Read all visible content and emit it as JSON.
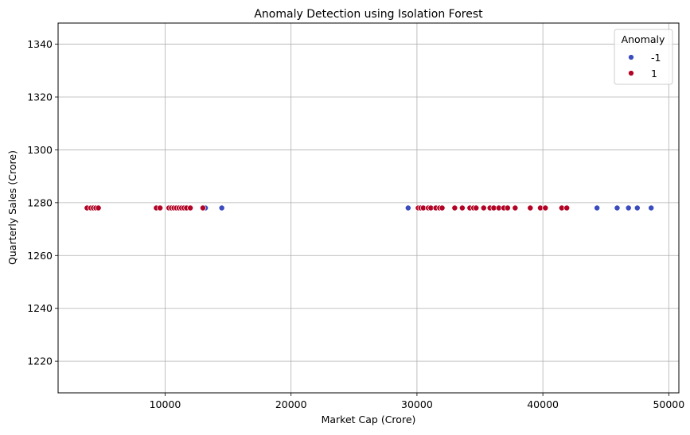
{
  "chart_data": {
    "type": "scatter",
    "title": "Anomaly Detection using Isolation Forest",
    "xlabel": "Market Cap (Crore)",
    "ylabel": "Quarterly Sales (Crore)",
    "xlim": [
      1500,
      50800
    ],
    "ylim": [
      1208,
      1348
    ],
    "xticks": [
      10000,
      20000,
      30000,
      40000,
      50000
    ],
    "yticks": [
      1220,
      1240,
      1260,
      1280,
      1300,
      1320,
      1340
    ],
    "grid": true,
    "legend": {
      "title": "Anomaly",
      "placement": "top-right",
      "entries": [
        {
          "label": "-1",
          "color": "#3b4cc0"
        },
        {
          "label": "1",
          "color": "#b40426"
        }
      ]
    },
    "series": [
      {
        "name": "-1",
        "color": "#3b4cc0",
        "x": [
          13200,
          14500,
          29300,
          44300,
          45900,
          46800,
          47500,
          48600
        ],
        "y": [
          1278,
          1278,
          1278,
          1278,
          1278,
          1278,
          1278,
          1278
        ]
      },
      {
        "name": "1",
        "color": "#b40426",
        "x": [
          3800,
          4100,
          4300,
          4500,
          4700,
          9300,
          9600,
          10300,
          10500,
          10700,
          10900,
          11100,
          11300,
          11500,
          11700,
          12000,
          13000,
          30100,
          30300,
          30500,
          30900,
          31100,
          31500,
          31800,
          32000,
          33000,
          33600,
          34200,
          34500,
          34700,
          35300,
          35800,
          36100,
          36500,
          36900,
          37200,
          37800,
          39000,
          39800,
          40200,
          41500,
          41900
        ],
        "y": [
          1278,
          1278,
          1278,
          1278,
          1278,
          1278,
          1278,
          1278,
          1278,
          1278,
          1278,
          1278,
          1278,
          1278,
          1278,
          1278,
          1278,
          1278,
          1278,
          1278,
          1278,
          1278,
          1278,
          1278,
          1278,
          1278,
          1278,
          1278,
          1278,
          1278,
          1278,
          1278,
          1278,
          1278,
          1278,
          1278,
          1278,
          1278,
          1278,
          1278,
          1278,
          1278
        ]
      }
    ]
  }
}
